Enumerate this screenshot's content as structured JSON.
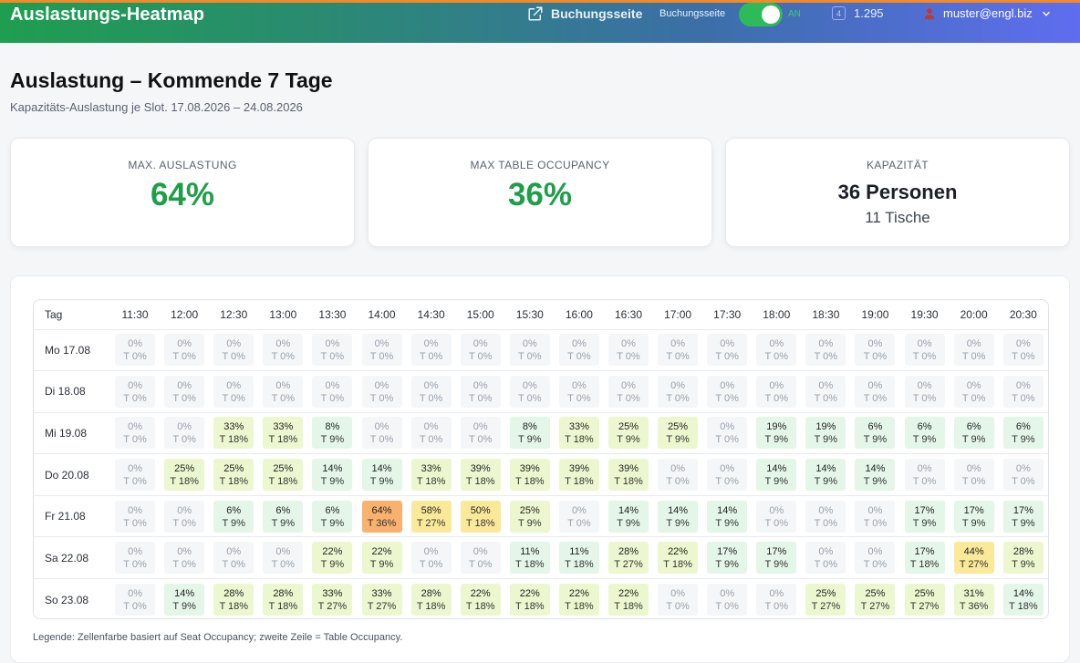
{
  "topbar": {
    "title": "Auslastungs-Heatmap",
    "booking_link": "Buchungsseite",
    "toggle_label": "Buchungsseite",
    "toggle_state": "AN",
    "credits": "1.295",
    "user": "muster@engl.biz",
    "icons": {
      "link": "external-link-icon",
      "credits": "credit-icon",
      "user": "user-icon",
      "menu": "chevron-down-icon"
    }
  },
  "page": {
    "title": "Auslastung – Kommende 7 Tage",
    "subtitle": "Kapazitäts-Auslastung je Slot. 17.08.2026 – 24.08.2026"
  },
  "kpis": {
    "max_seat": {
      "label": "MAX. AUSLASTUNG",
      "value": "64%"
    },
    "max_table": {
      "label": "MAX TABLE OCCUPANCY",
      "value": "36%"
    },
    "capacity": {
      "label": "KAPAZITÄT",
      "main": "36 Personen",
      "sub": "11 Tische"
    }
  },
  "heatmap": {
    "day_header": "Tag",
    "slots": [
      "11:30",
      "12:00",
      "12:30",
      "13:00",
      "13:30",
      "14:00",
      "14:30",
      "15:00",
      "15:30",
      "16:00",
      "16:30",
      "17:00",
      "17:30",
      "18:00",
      "18:30",
      "19:00",
      "19:30",
      "20:00",
      "20:30"
    ],
    "rows": [
      {
        "day": "Mo 17.08",
        "seat": [
          "0%",
          "0%",
          "0%",
          "0%",
          "0%",
          "0%",
          "0%",
          "0%",
          "0%",
          "0%",
          "0%",
          "0%",
          "0%",
          "0%",
          "0%",
          "0%",
          "0%",
          "0%",
          "0%"
        ],
        "table": [
          "T 0%",
          "T 0%",
          "T 0%",
          "T 0%",
          "T 0%",
          "T 0%",
          "T 0%",
          "T 0%",
          "T 0%",
          "T 0%",
          "T 0%",
          "T 0%",
          "T 0%",
          "T 0%",
          "T 0%",
          "T 0%",
          "T 0%",
          "T 0%",
          "T 0%"
        ]
      },
      {
        "day": "Di 18.08",
        "seat": [
          "0%",
          "0%",
          "0%",
          "0%",
          "0%",
          "0%",
          "0%",
          "0%",
          "0%",
          "0%",
          "0%",
          "0%",
          "0%",
          "0%",
          "0%",
          "0%",
          "0%",
          "0%",
          "0%"
        ],
        "table": [
          "T 0%",
          "T 0%",
          "T 0%",
          "T 0%",
          "T 0%",
          "T 0%",
          "T 0%",
          "T 0%",
          "T 0%",
          "T 0%",
          "T 0%",
          "T 0%",
          "T 0%",
          "T 0%",
          "T 0%",
          "T 0%",
          "T 0%",
          "T 0%",
          "T 0%"
        ]
      },
      {
        "day": "Mi 19.08",
        "seat": [
          "0%",
          "0%",
          "33%",
          "33%",
          "8%",
          "0%",
          "0%",
          "0%",
          "8%",
          "33%",
          "25%",
          "25%",
          "0%",
          "19%",
          "19%",
          "6%",
          "6%",
          "6%",
          "6%"
        ],
        "table": [
          "T 0%",
          "T 0%",
          "T 18%",
          "T 18%",
          "T 9%",
          "T 0%",
          "T 0%",
          "T 0%",
          "T 9%",
          "T 18%",
          "T 9%",
          "T 9%",
          "T 0%",
          "T 9%",
          "T 9%",
          "T 9%",
          "T 9%",
          "T 9%",
          "T 9%"
        ]
      },
      {
        "day": "Do 20.08",
        "seat": [
          "0%",
          "25%",
          "25%",
          "25%",
          "14%",
          "14%",
          "33%",
          "39%",
          "39%",
          "39%",
          "39%",
          "0%",
          "0%",
          "14%",
          "14%",
          "14%",
          "0%",
          "0%",
          "0%"
        ],
        "table": [
          "T 0%",
          "T 18%",
          "T 18%",
          "T 18%",
          "T 9%",
          "T 9%",
          "T 18%",
          "T 18%",
          "T 18%",
          "T 18%",
          "T 18%",
          "T 0%",
          "T 0%",
          "T 9%",
          "T 9%",
          "T 9%",
          "T 0%",
          "T 0%",
          "T 0%"
        ]
      },
      {
        "day": "Fr 21.08",
        "seat": [
          "0%",
          "0%",
          "6%",
          "6%",
          "6%",
          "64%",
          "58%",
          "50%",
          "25%",
          "0%",
          "14%",
          "14%",
          "14%",
          "0%",
          "0%",
          "0%",
          "17%",
          "17%",
          "17%"
        ],
        "table": [
          "T 0%",
          "T 0%",
          "T 9%",
          "T 9%",
          "T 9%",
          "T 36%",
          "T 27%",
          "T 18%",
          "T 9%",
          "T 0%",
          "T 9%",
          "T 9%",
          "T 9%",
          "T 0%",
          "T 0%",
          "T 0%",
          "T 9%",
          "T 9%",
          "T 9%"
        ]
      },
      {
        "day": "Sa 22.08",
        "seat": [
          "0%",
          "0%",
          "0%",
          "0%",
          "22%",
          "22%",
          "0%",
          "0%",
          "11%",
          "11%",
          "28%",
          "22%",
          "17%",
          "17%",
          "0%",
          "0%",
          "17%",
          "44%",
          "28%"
        ],
        "table": [
          "T 0%",
          "T 0%",
          "T 0%",
          "T 0%",
          "T 9%",
          "T 9%",
          "T 0%",
          "T 0%",
          "T 18%",
          "T 18%",
          "T 27%",
          "T 18%",
          "T 9%",
          "T 9%",
          "T 0%",
          "T 0%",
          "T 18%",
          "T 27%",
          "T 9%"
        ]
      },
      {
        "day": "So 23.08",
        "seat": [
          "0%",
          "14%",
          "28%",
          "28%",
          "33%",
          "33%",
          "28%",
          "22%",
          "22%",
          "22%",
          "22%",
          "0%",
          "0%",
          "0%",
          "25%",
          "25%",
          "25%",
          "31%",
          "14%"
        ],
        "table": [
          "T 0%",
          "T 9%",
          "T 18%",
          "T 18%",
          "T 27%",
          "T 27%",
          "T 18%",
          "T 18%",
          "T 18%",
          "T 18%",
          "T 18%",
          "T 0%",
          "T 0%",
          "T 0%",
          "T 27%",
          "T 27%",
          "T 27%",
          "T 36%",
          "T 18%"
        ]
      }
    ],
    "legend": "Legende: Zellenfarbe basiert auf Seat Occupancy; zweite Zeile = Table Occupancy.",
    "colors": {
      "zero": "#f4f6f8",
      "low": "#e3f6e8",
      "mid": "#ecf7cf",
      "high": "#fbe99a",
      "peak": "#f8b26e"
    }
  },
  "colors": {
    "accent_green": "#1f9e4a",
    "header_gradient_start": "#1e9e4f",
    "header_gradient_end": "#5f6df0"
  }
}
